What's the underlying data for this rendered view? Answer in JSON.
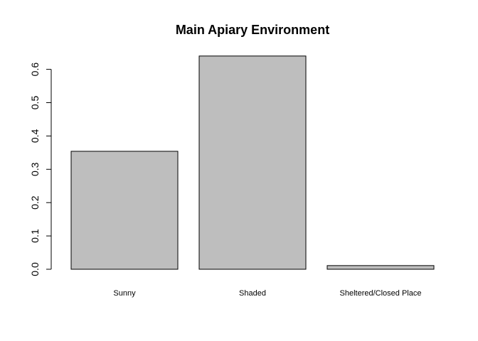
{
  "chart_data": {
    "type": "bar",
    "title": "Main Apiary Environment",
    "categories": [
      "Sunny",
      "Shaded",
      "Sheltered/Closed Place"
    ],
    "values": [
      0.354,
      0.64,
      0.011
    ],
    "xlabel": "",
    "ylabel": "",
    "ylim": [
      0,
      0.6
    ],
    "yticks": [
      0.0,
      0.1,
      0.2,
      0.3,
      0.4,
      0.5,
      0.6
    ],
    "ytick_labels": [
      "0.0",
      "0.1",
      "0.2",
      "0.3",
      "0.4",
      "0.5",
      "0.6"
    ],
    "bar_color": "#bebebe",
    "border_color": "#000000",
    "grid": false
  }
}
